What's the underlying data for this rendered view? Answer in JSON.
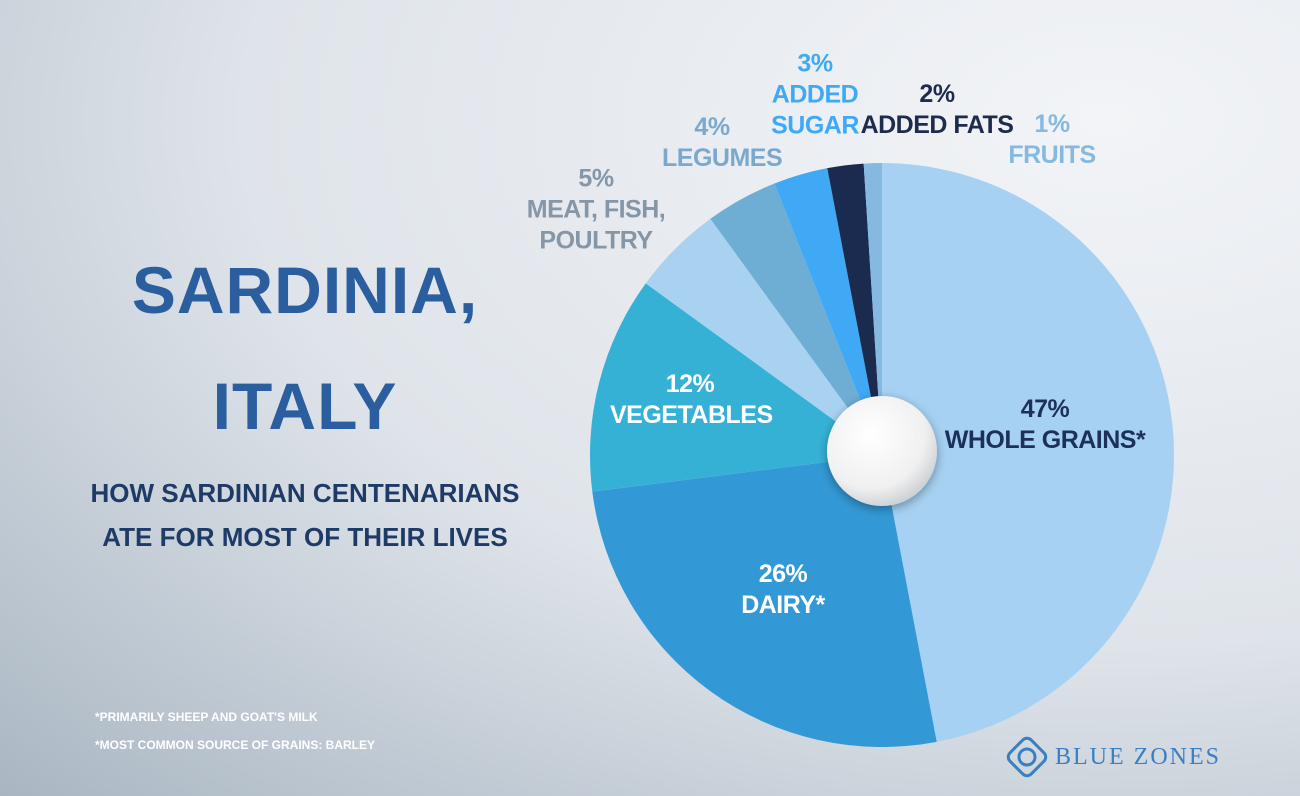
{
  "chart_data": {
    "type": "pie",
    "title": [
      "SARDINIA,",
      "ITALY"
    ],
    "subtitle": [
      "HOW SARDINIAN CENTENARIANS",
      "ATE FOR MOST OF THEIR LIVES"
    ],
    "categories": [
      "WHOLE GRAINS*",
      "DAIRY*",
      "VEGETABLES",
      "MEAT, FISH, POULTRY",
      "LEGUMES",
      "ADDED SUGAR",
      "ADDED FATS",
      "FRUITS"
    ],
    "values": [
      47,
      26,
      12,
      5,
      4,
      3,
      2,
      1
    ],
    "value_labels": [
      "47%",
      "26%",
      "12%",
      "5%",
      "4%",
      "3%",
      "2%",
      "1%"
    ],
    "colors": [
      "#a6d1f2",
      "#3399d6",
      "#36b1d6",
      "#a8d2f0",
      "#6eadd4",
      "#3fa9f5",
      "#1a2b4f",
      "#86b9e0"
    ],
    "label_colors": [
      "#1d3057",
      "#ffffff",
      "#ffffff",
      "#8596a6",
      "#7aa9cc",
      "#3fa9f5",
      "#1d2b4d",
      "#86b9e0"
    ],
    "footnotes": [
      "*PRIMARILY SHEEP AND GOAT'S MILK",
      "*MOST COMMON SOURCE OF GRAINS: BARLEY"
    ],
    "brand": "BLUE ZONES"
  }
}
